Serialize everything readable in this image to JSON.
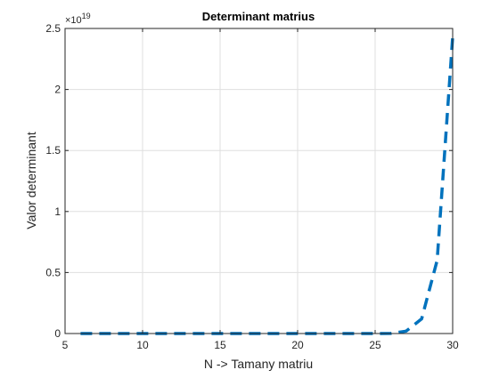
{
  "chart_data": {
    "type": "line",
    "title": "Determinant matrius",
    "xlabel": "N -> Tamany matriu",
    "ylabel": "Valor determinant",
    "xlim": [
      5,
      30
    ],
    "ylim": [
      0,
      2.5
    ],
    "y_exponent_label": "×10",
    "y_exponent": "19",
    "xticks": [
      5,
      10,
      15,
      20,
      25,
      30
    ],
    "yticks": [
      0,
      0.5,
      1,
      1.5,
      2,
      2.5
    ],
    "xtick_labels": [
      "5",
      "10",
      "15",
      "20",
      "25",
      "30"
    ],
    "ytick_labels": [
      "0",
      "0.5",
      "1",
      "1.5",
      "2",
      "2.5"
    ],
    "grid": true,
    "series": [
      {
        "line_style": "dashed",
        "color": "#0072BD",
        "x": [
          6,
          7,
          8,
          9,
          10,
          11,
          12,
          13,
          14,
          15,
          16,
          17,
          18,
          19,
          20,
          21,
          22,
          23,
          24,
          25,
          26,
          27,
          28,
          29,
          30
        ],
        "y": [
          0,
          0,
          0,
          0,
          0,
          0,
          0,
          0,
          0,
          0,
          0,
          0,
          0,
          0,
          0,
          0,
          0,
          0,
          0,
          0,
          0.001,
          0.02,
          0.12,
          0.6,
          2.43
        ]
      }
    ]
  }
}
